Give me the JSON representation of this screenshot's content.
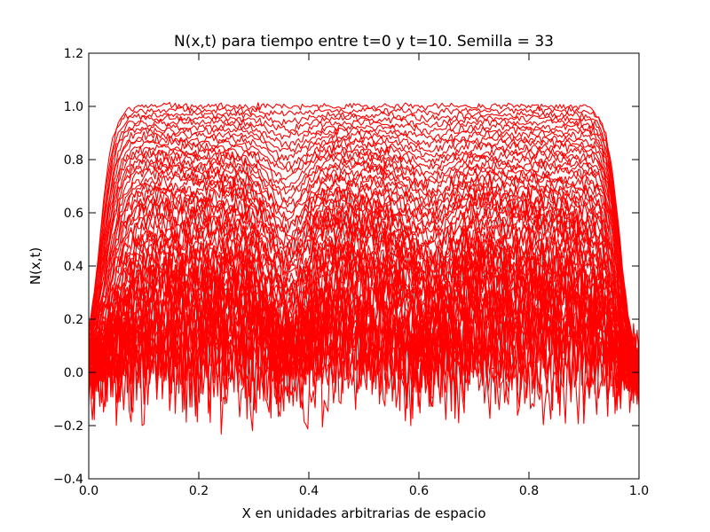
{
  "chart_data": {
    "type": "line",
    "title": "N(x,t) para tiempo entre t=0 y t=10.    Semilla = 33",
    "xlabel": "X en unidades arbitrarias de espacio",
    "ylabel": "N(x,t)",
    "xlim": [
      0.0,
      1.0
    ],
    "ylim": [
      -0.4,
      1.2
    ],
    "x_ticks": [
      "0.0",
      "0.2",
      "0.4",
      "0.6",
      "0.8",
      "1.0"
    ],
    "y_ticks": [
      "−0.4",
      "−0.2",
      "0.0",
      "0.2",
      "0.4",
      "0.6",
      "0.8",
      "1.0",
      "1.2"
    ],
    "grid": false,
    "legend": "none",
    "line_color": "#ff0000",
    "description_series": [
      {
        "name": "",
        "note": "family of ~60 noisy profiles N(x,t) from t=0 to t=10; early curves near 0 with noise in [-0.33, 0.35], later curves grow toward a plateau at 1.0 between x≈0.1 and x≈0.93",
        "plateau_value": 1.0,
        "plateau_x_range": [
          0.1,
          0.93
        ],
        "min_value": -0.33,
        "max_value": 1.04
      }
    ]
  }
}
